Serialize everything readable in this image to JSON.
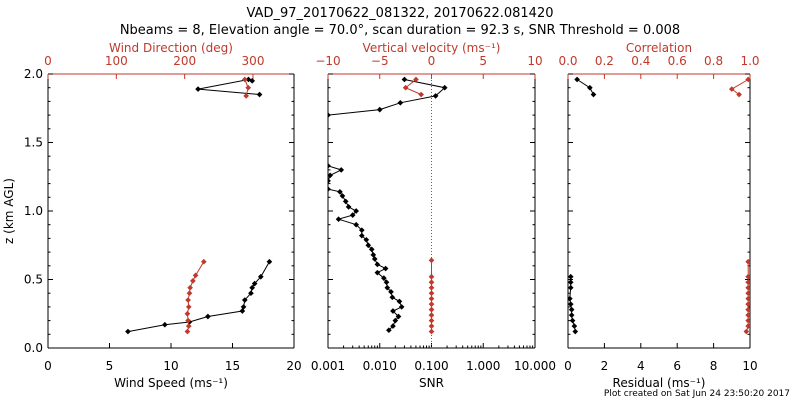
{
  "header": {
    "title": "VAD_97_20170622_081322, 20170622.081420",
    "subtitle": "Nbeams = 8, Elevation angle = 70.0°, scan duration = 92.3 s, SNR Threshold = 0.008",
    "footer": "Plot created on Sat Jun 24 23:50:20 2017"
  },
  "colors": {
    "primary": "#000000",
    "secondary": "#c0392b"
  },
  "chart_data": [
    {
      "type": "line",
      "ylabel": "z (km AGL)",
      "ylim": [
        0,
        2
      ],
      "yticks": [
        "0.0",
        "0.5",
        "1.0",
        "1.5",
        "2.0"
      ],
      "xlabel": "Wind Speed (ms⁻¹)",
      "xlim": [
        0,
        20
      ],
      "xticks": [
        "0",
        "5",
        "10",
        "15",
        "20"
      ],
      "top_xlabel": "Wind Direction (deg)",
      "top_xlim": [
        0,
        360
      ],
      "top_xticks": [
        "0",
        "100",
        "200",
        "300"
      ],
      "series": [
        {
          "axis": "bottom",
          "color": "black",
          "points": [
            [
              16.6,
              1.95
            ],
            [
              16.3,
              1.96
            ],
            [
              12.2,
              1.89
            ],
            [
              17.2,
              1.85
            ],
            [
              null,
              null
            ],
            [
              6.5,
              0.12
            ],
            [
              9.5,
              0.17
            ],
            [
              11.5,
              0.19
            ],
            [
              13.0,
              0.23
            ],
            [
              15.8,
              0.27
            ],
            [
              15.9,
              0.3
            ],
            [
              16.0,
              0.35
            ],
            [
              16.5,
              0.4
            ],
            [
              16.6,
              0.44
            ],
            [
              16.8,
              0.47
            ],
            [
              17.3,
              0.52
            ],
            [
              18.0,
              0.63
            ]
          ]
        },
        {
          "axis": "top",
          "color": "red",
          "points": [
            [
              288,
              1.96
            ],
            [
              293,
              1.9
            ],
            [
              290,
              1.84
            ],
            [
              null,
              null
            ],
            [
              204,
              0.12
            ],
            [
              206,
              0.16
            ],
            [
              205,
              0.2
            ],
            [
              204,
              0.25
            ],
            [
              206,
              0.3
            ],
            [
              205,
              0.35
            ],
            [
              207,
              0.4
            ],
            [
              208,
              0.44
            ],
            [
              212,
              0.49
            ],
            [
              216,
              0.53
            ],
            [
              228,
              0.63
            ]
          ]
        }
      ]
    },
    {
      "type": "line",
      "ylim": [
        0,
        2
      ],
      "xlabel": "SNR",
      "xscale": "log",
      "xlim": [
        0.001,
        10
      ],
      "xticks": [
        "0.001",
        "0.010",
        "0.100",
        "1.000",
        "10.000"
      ],
      "top_xlabel": "Vertical velocity (ms⁻¹)",
      "top_xlim": [
        -10,
        10
      ],
      "top_xticks": [
        "−10",
        "−5",
        "0",
        "5",
        "10"
      ],
      "reference_line": 0.1,
      "series": [
        {
          "axis": "bottom",
          "color": "black",
          "points": [
            [
              0.03,
              1.96
            ],
            [
              0.18,
              1.9
            ],
            [
              0.12,
              1.84
            ],
            [
              0.025,
              1.79
            ],
            [
              0.01,
              1.74
            ],
            [
              0.001,
              1.7
            ],
            [
              null,
              null
            ],
            [
              0.001,
              1.33
            ],
            [
              0.0018,
              1.3
            ],
            [
              0.0011,
              1.26
            ],
            [
              0.001,
              1.22
            ],
            [
              null,
              null
            ],
            [
              0.001,
              1.16
            ],
            [
              0.0017,
              1.14
            ],
            [
              0.0019,
              1.11
            ],
            [
              0.0022,
              1.07
            ],
            [
              0.0025,
              1.03
            ],
            [
              0.0035,
              1.0
            ],
            [
              0.003,
              0.97
            ],
            [
              0.0016,
              0.94
            ],
            [
              0.0035,
              0.9
            ],
            [
              0.0045,
              0.86
            ],
            [
              0.0045,
              0.82
            ],
            [
              0.0055,
              0.79
            ],
            [
              0.006,
              0.75
            ],
            [
              0.007,
              0.72
            ],
            [
              0.0075,
              0.68
            ],
            [
              0.008,
              0.65
            ],
            [
              0.009,
              0.61
            ],
            [
              0.013,
              0.58
            ],
            [
              0.009,
              0.55
            ],
            [
              0.012,
              0.51
            ],
            [
              0.0135,
              0.48
            ],
            [
              0.014,
              0.44
            ],
            [
              0.0165,
              0.41
            ],
            [
              0.0175,
              0.37
            ],
            [
              0.024,
              0.34
            ],
            [
              0.0265,
              0.3
            ],
            [
              0.018,
              0.27
            ],
            [
              0.023,
              0.23
            ],
            [
              0.02,
              0.2
            ],
            [
              0.018,
              0.16
            ],
            [
              0.015,
              0.13
            ]
          ]
        },
        {
          "axis": "top",
          "color": "red",
          "points": [
            [
              -1.5,
              1.96
            ],
            [
              -2.5,
              1.9
            ],
            [
              -1.0,
              1.85
            ],
            [
              null,
              null
            ],
            [
              0.0,
              0.64
            ],
            [
              0.0,
              0.52
            ],
            [
              0.0,
              0.48
            ],
            [
              0.0,
              0.44
            ],
            [
              0.0,
              0.4
            ],
            [
              0.0,
              0.36
            ],
            [
              0.0,
              0.32
            ],
            [
              0.0,
              0.28
            ],
            [
              0.0,
              0.24
            ],
            [
              0.0,
              0.2
            ],
            [
              0.0,
              0.16
            ],
            [
              0.0,
              0.12
            ]
          ]
        }
      ]
    },
    {
      "type": "line",
      "ylim": [
        0,
        2
      ],
      "xlabel": "Residual (ms⁻¹)",
      "xlim": [
        0,
        10
      ],
      "xticks": [
        "0",
        "2",
        "4",
        "6",
        "8",
        "10"
      ],
      "top_xlabel": "Correlation",
      "top_xlim": [
        0,
        1
      ],
      "top_xticks": [
        "0.0",
        "0.2",
        "0.4",
        "0.6",
        "0.8",
        "1.0"
      ],
      "series": [
        {
          "axis": "bottom",
          "color": "black",
          "points": [
            [
              0.5,
              1.96
            ],
            [
              1.2,
              1.9
            ],
            [
              1.4,
              1.85
            ],
            [
              null,
              null
            ],
            [
              0.15,
              0.52
            ],
            [
              0.15,
              0.48
            ],
            [
              0.15,
              0.44
            ],
            [
              0.1,
              0.36
            ],
            [
              0.15,
              0.32
            ],
            [
              0.2,
              0.28
            ],
            [
              0.2,
              0.24
            ],
            [
              0.25,
              0.2
            ],
            [
              0.35,
              0.16
            ],
            [
              0.4,
              0.12
            ]
          ]
        },
        {
          "axis": "top",
          "color": "red",
          "points": [
            [
              0.99,
              1.96
            ],
            [
              0.9,
              1.89
            ],
            [
              0.94,
              1.85
            ],
            [
              null,
              null
            ],
            [
              0.99,
              0.63
            ],
            [
              0.99,
              0.52
            ],
            [
              0.99,
              0.48
            ],
            [
              0.99,
              0.44
            ],
            [
              0.99,
              0.4
            ],
            [
              0.99,
              0.36
            ],
            [
              0.99,
              0.32
            ],
            [
              0.99,
              0.28
            ],
            [
              0.99,
              0.24
            ],
            [
              0.99,
              0.2
            ],
            [
              0.99,
              0.16
            ],
            [
              0.98,
              0.12
            ]
          ]
        }
      ]
    }
  ]
}
